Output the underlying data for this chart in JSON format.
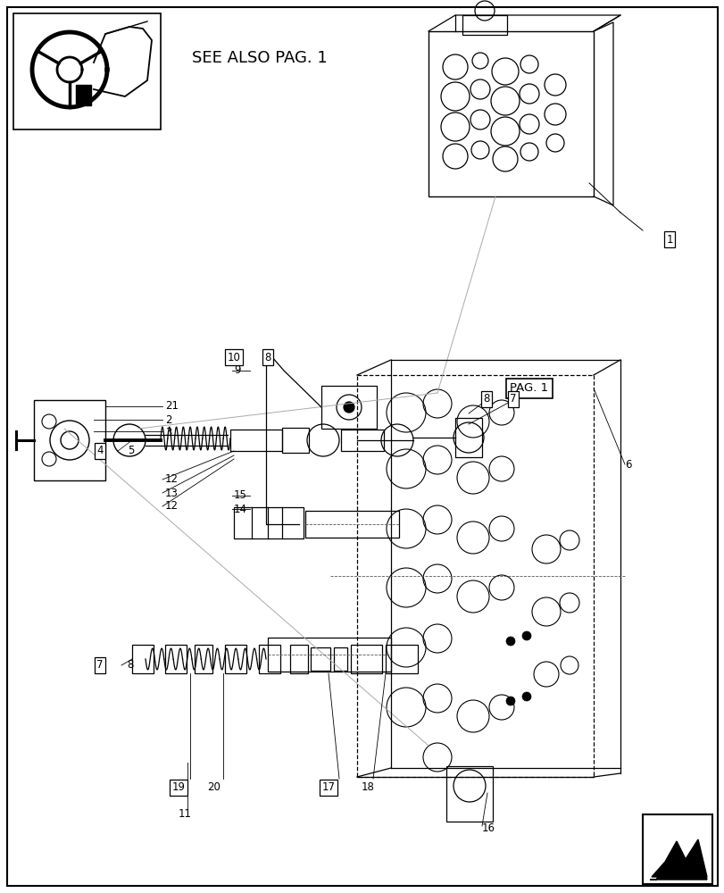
{
  "bg_color": "#ffffff",
  "line_color": "#000000",
  "fig_width": 8.12,
  "fig_height": 10.0,
  "see_also_text": "SEE ALSO PAG. 1",
  "pag1_text": "PAG. 1"
}
